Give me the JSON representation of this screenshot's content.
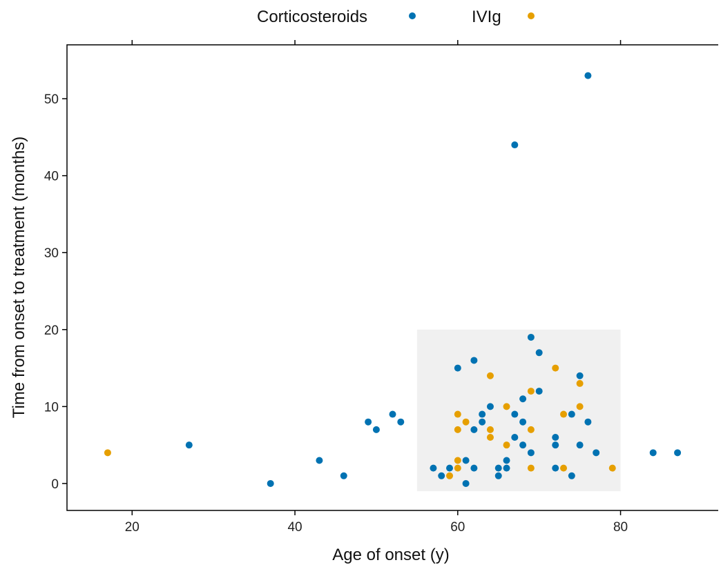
{
  "chart_data": {
    "type": "scatter",
    "title": "",
    "xlabel": "Age of onset (y)",
    "ylabel": "Time from onset to treatment (months)",
    "xlim": [
      12,
      92
    ],
    "ylim": [
      -3.5,
      57
    ],
    "xticks": [
      20,
      40,
      60,
      80
    ],
    "yticks": [
      0,
      10,
      20,
      30,
      40,
      50
    ],
    "grid": false,
    "legend_position": "top",
    "highlight_region": {
      "x": [
        55,
        80
      ],
      "y": [
        -1,
        20
      ],
      "color": "#f0f0f0"
    },
    "series": [
      {
        "name": "Corticosteroids",
        "color": "#0072B2",
        "points": [
          [
            27,
            5
          ],
          [
            37,
            0
          ],
          [
            43,
            3
          ],
          [
            46,
            1
          ],
          [
            49,
            8
          ],
          [
            50,
            7
          ],
          [
            52,
            9
          ],
          [
            53,
            8
          ],
          [
            57,
            2
          ],
          [
            58,
            1
          ],
          [
            59,
            2
          ],
          [
            60,
            15
          ],
          [
            61,
            3
          ],
          [
            61,
            0
          ],
          [
            62,
            16
          ],
          [
            62,
            2
          ],
          [
            62,
            7
          ],
          [
            63,
            9
          ],
          [
            63,
            8
          ],
          [
            64,
            10
          ],
          [
            65,
            2
          ],
          [
            65,
            1
          ],
          [
            66,
            3
          ],
          [
            66,
            2
          ],
          [
            67,
            9
          ],
          [
            67,
            6
          ],
          [
            67,
            44
          ],
          [
            68,
            11
          ],
          [
            68,
            8
          ],
          [
            68,
            5
          ],
          [
            69,
            19
          ],
          [
            69,
            4
          ],
          [
            70,
            17
          ],
          [
            70,
            12
          ],
          [
            72,
            6
          ],
          [
            72,
            5
          ],
          [
            72,
            2
          ],
          [
            74,
            9
          ],
          [
            74,
            1
          ],
          [
            75,
            14
          ],
          [
            75,
            5
          ],
          [
            76,
            8
          ],
          [
            76,
            53
          ],
          [
            77,
            4
          ],
          [
            84,
            4
          ],
          [
            87,
            4
          ]
        ]
      },
      {
        "name": "IVIg",
        "color": "#E69F00",
        "points": [
          [
            17,
            4
          ],
          [
            59,
            1
          ],
          [
            60,
            9
          ],
          [
            60,
            7
          ],
          [
            60,
            3
          ],
          [
            60,
            2
          ],
          [
            61,
            8
          ],
          [
            64,
            14
          ],
          [
            64,
            7
          ],
          [
            64,
            6
          ],
          [
            66,
            10
          ],
          [
            66,
            5
          ],
          [
            69,
            12
          ],
          [
            69,
            7
          ],
          [
            69,
            2
          ],
          [
            72,
            15
          ],
          [
            73,
            9
          ],
          [
            73,
            2
          ],
          [
            75,
            13
          ],
          [
            75,
            10
          ],
          [
            79,
            2
          ]
        ]
      }
    ]
  }
}
